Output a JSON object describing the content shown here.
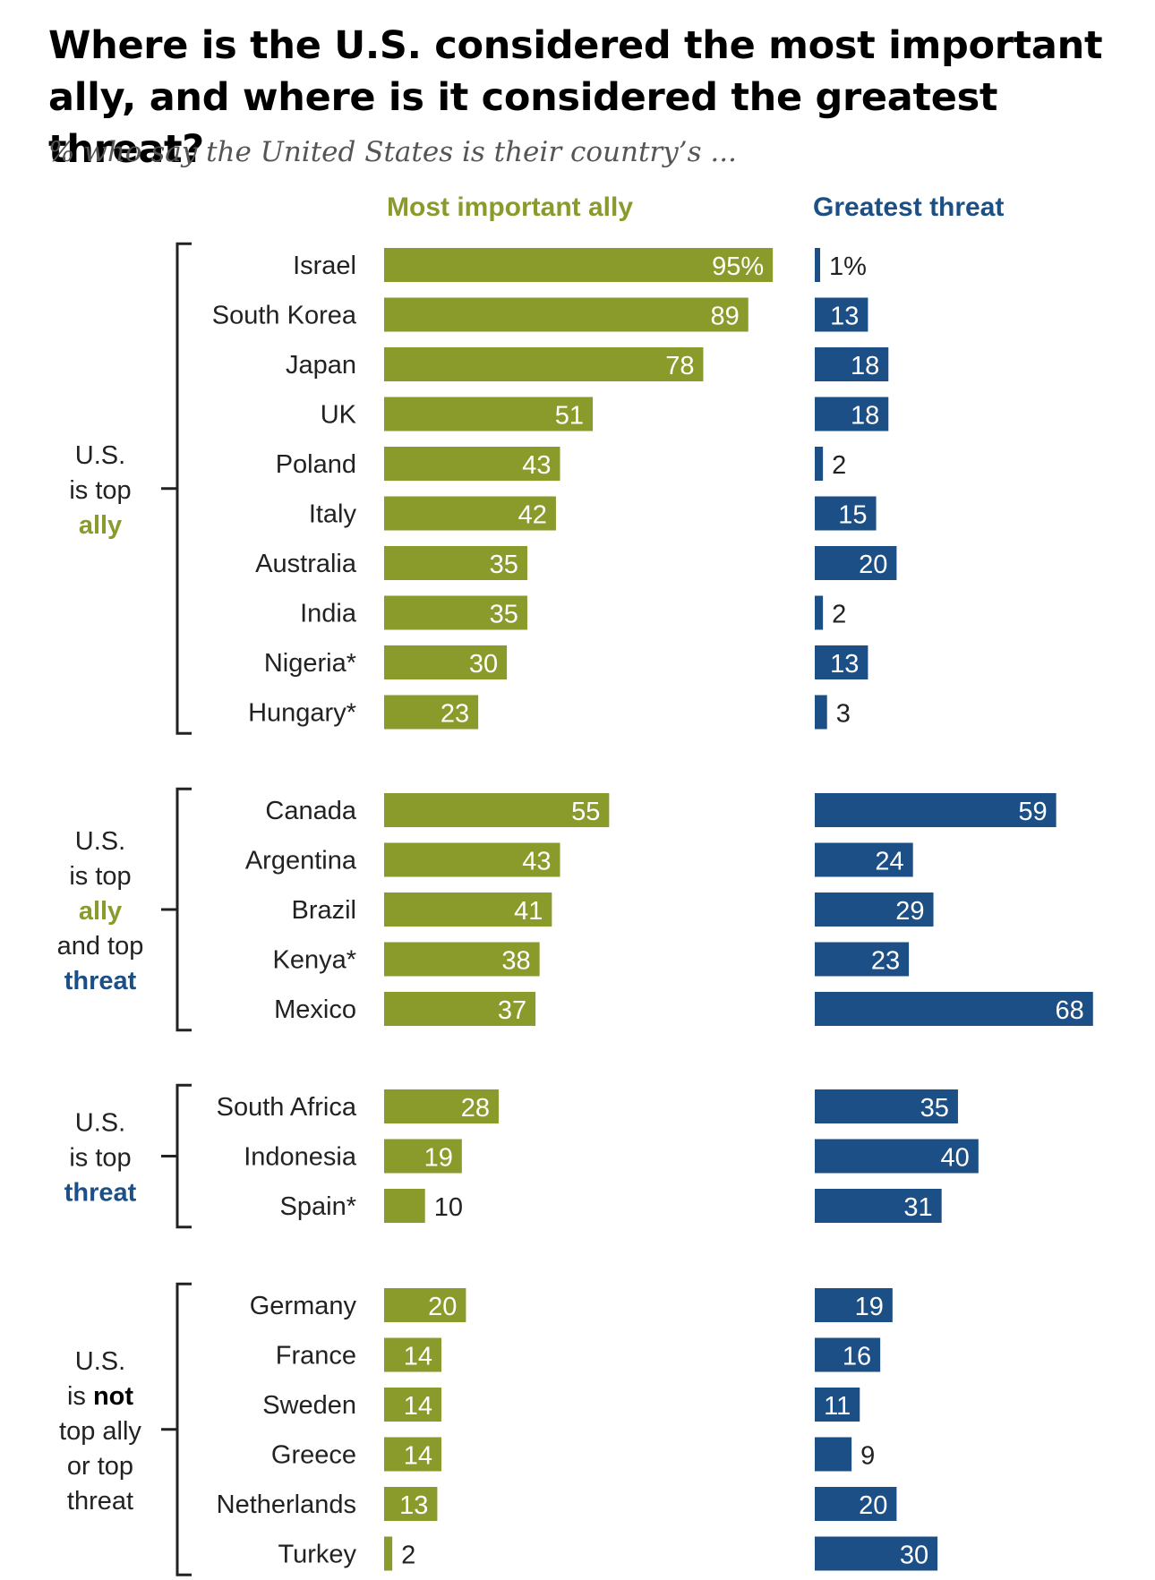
{
  "title": "Where is the U.S. considered the most important ally, and where is it considered the greatest threat?",
  "subtitle": "% who say the United States is their country’s ...",
  "colors": {
    "ally": "#8a9a2b",
    "threat": "#1b4f86",
    "text": "#222222"
  },
  "chart_data": {
    "type": "bar",
    "title": "Where is the U.S. considered the most important ally, and where is it considered the greatest threat?",
    "subtitle": "% who say the United States is their country’s ...",
    "columns": [
      "Most important ally",
      "Greatest threat"
    ],
    "unit_suffix": "%",
    "groups": [
      {
        "label_lines": [
          [
            {
              "t": "U.S.",
              "c": "text"
            }
          ],
          [
            {
              "t": "is top",
              "c": "text"
            }
          ],
          [
            {
              "t": "ally",
              "c": "ally"
            }
          ]
        ],
        "rows": [
          {
            "country": "Israel",
            "ally": 95,
            "threat": 1
          },
          {
            "country": "South Korea",
            "ally": 89,
            "threat": 13
          },
          {
            "country": "Japan",
            "ally": 78,
            "threat": 18
          },
          {
            "country": "UK",
            "ally": 51,
            "threat": 18
          },
          {
            "country": "Poland",
            "ally": 43,
            "threat": 2
          },
          {
            "country": "Italy",
            "ally": 42,
            "threat": 15
          },
          {
            "country": "Australia",
            "ally": 35,
            "threat": 20
          },
          {
            "country": "India",
            "ally": 35,
            "threat": 2
          },
          {
            "country": "Nigeria*",
            "ally": 30,
            "threat": 13
          },
          {
            "country": "Hungary*",
            "ally": 23,
            "threat": 3
          }
        ]
      },
      {
        "label_lines": [
          [
            {
              "t": "U.S.",
              "c": "text"
            }
          ],
          [
            {
              "t": "is top",
              "c": "text"
            }
          ],
          [
            {
              "t": "ally",
              "c": "ally"
            }
          ],
          [
            {
              "t": "and top",
              "c": "text"
            }
          ],
          [
            {
              "t": "threat",
              "c": "threat"
            }
          ]
        ],
        "rows": [
          {
            "country": "Canada",
            "ally": 55,
            "threat": 59
          },
          {
            "country": "Argentina",
            "ally": 43,
            "threat": 24
          },
          {
            "country": "Brazil",
            "ally": 41,
            "threat": 29
          },
          {
            "country": "Kenya*",
            "ally": 38,
            "threat": 23
          },
          {
            "country": "Mexico",
            "ally": 37,
            "threat": 68
          }
        ]
      },
      {
        "label_lines": [
          [
            {
              "t": "U.S.",
              "c": "text"
            }
          ],
          [
            {
              "t": "is top",
              "c": "text"
            }
          ],
          [
            {
              "t": "threat",
              "c": "threat"
            }
          ]
        ],
        "rows": [
          {
            "country": "South Africa",
            "ally": 28,
            "threat": 35
          },
          {
            "country": "Indonesia",
            "ally": 19,
            "threat": 40
          },
          {
            "country": "Spain*",
            "ally": 10,
            "threat": 31
          }
        ]
      },
      {
        "label_lines": [
          [
            {
              "t": "U.S.",
              "c": "text"
            }
          ],
          [
            {
              "t": "is ",
              "c": "text"
            },
            {
              "t": "not",
              "c": "bold"
            }
          ],
          [
            {
              "t": "top ally",
              "c": "text"
            }
          ],
          [
            {
              "t": "or top",
              "c": "text"
            }
          ],
          [
            {
              "t": "threat",
              "c": "text"
            }
          ]
        ],
        "rows": [
          {
            "country": "Germany",
            "ally": 20,
            "threat": 19
          },
          {
            "country": "France",
            "ally": 14,
            "threat": 16
          },
          {
            "country": "Sweden",
            "ally": 14,
            "threat": 11
          },
          {
            "country": "Greece",
            "ally": 14,
            "threat": 9
          },
          {
            "country": "Netherlands",
            "ally": 13,
            "threat": 20
          },
          {
            "country": "Turkey",
            "ally": 2,
            "threat": 30
          }
        ]
      }
    ]
  }
}
